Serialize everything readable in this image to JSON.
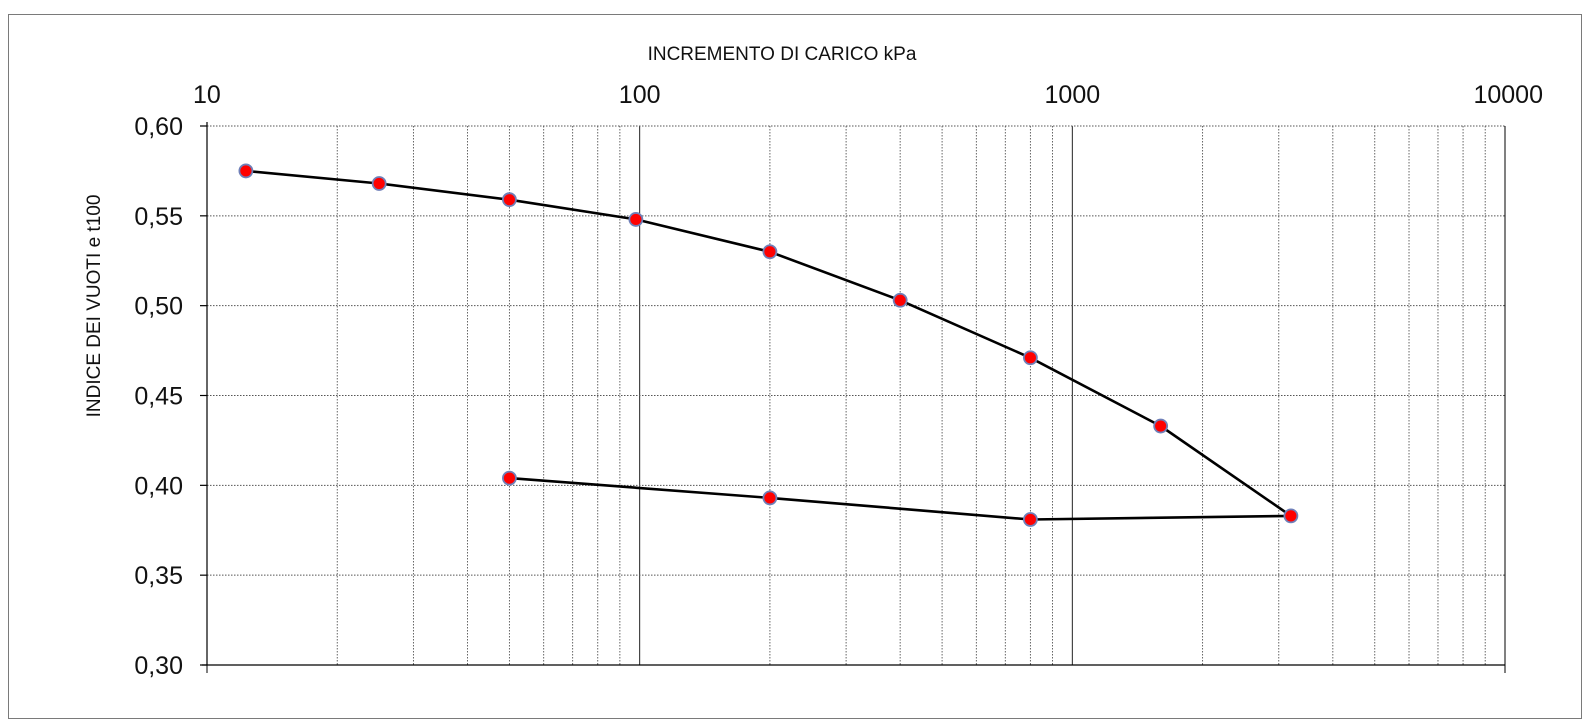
{
  "chart_data": {
    "type": "line",
    "xlabel": "INCREMENTO DI CARICO  kPa",
    "ylabel": "INDICE DEI VUOTI e t100",
    "x_scale": "log",
    "xlim": [
      10,
      10000
    ],
    "ylim": [
      0.3,
      0.6
    ],
    "x_tick_labels": [
      "10",
      "100",
      "1000",
      "10000"
    ],
    "y_tick_labels": [
      "0,60",
      "0,55",
      "0,50",
      "0,45",
      "0,40",
      "0,35",
      "0,30"
    ],
    "y_ticks": [
      0.6,
      0.55,
      0.5,
      0.45,
      0.4,
      0.35,
      0.3
    ],
    "grid": true,
    "x_axis_position": "top",
    "series": [
      {
        "points": [
          [
            12.3,
            0.575
          ],
          [
            25,
            0.568
          ],
          [
            50,
            0.559
          ],
          [
            98,
            0.548
          ],
          [
            200,
            0.53
          ],
          [
            400,
            0.503
          ],
          [
            800,
            0.471
          ],
          [
            1600,
            0.433
          ],
          [
            3200,
            0.383
          ],
          [
            800,
            0.381
          ],
          [
            200,
            0.393
          ],
          [
            50,
            0.404
          ]
        ]
      }
    ],
    "colors": {
      "line": "#000000",
      "marker_fill": "#ff0000",
      "marker_stroke": "#6f7fb8",
      "grid": "#555555"
    }
  }
}
